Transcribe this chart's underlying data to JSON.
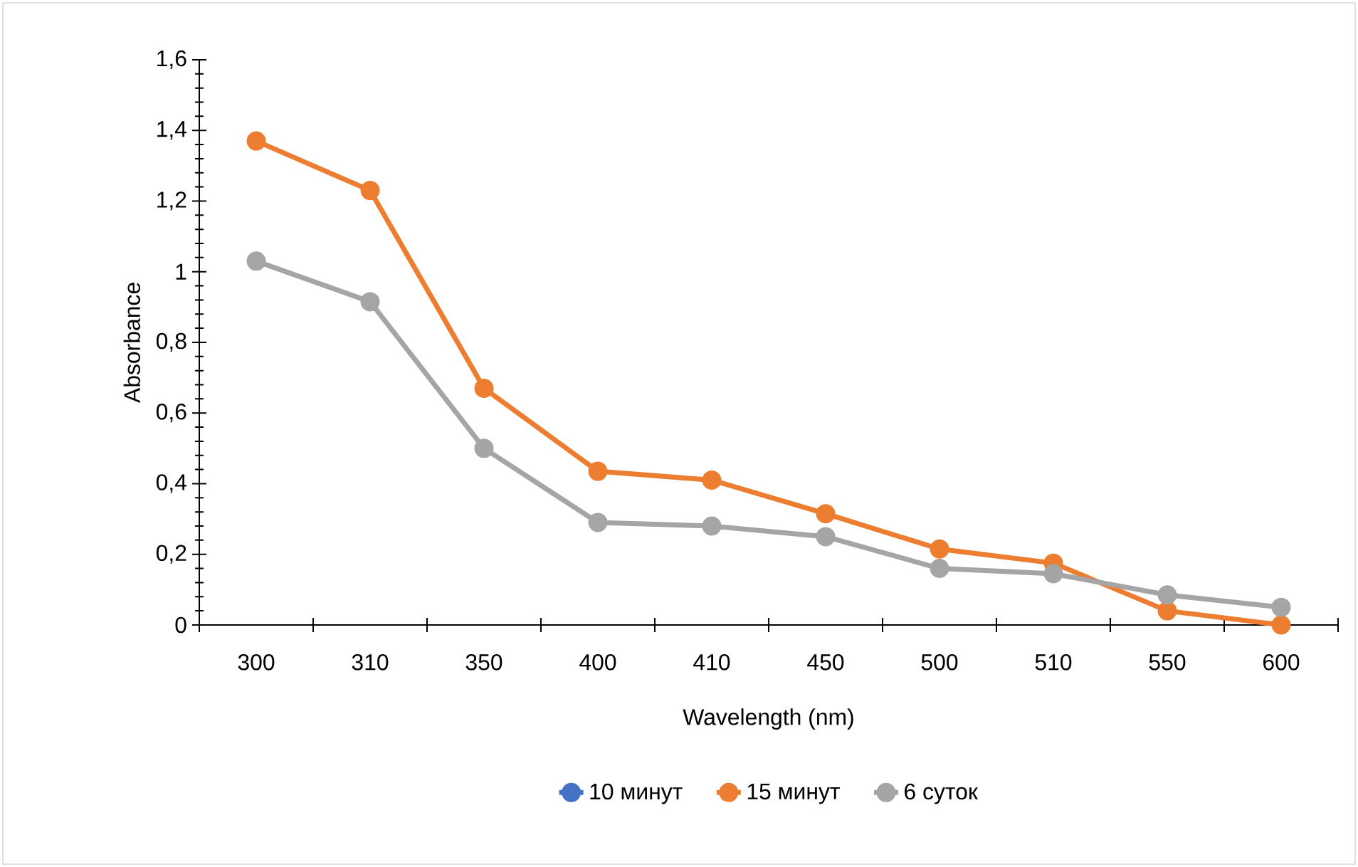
{
  "chart_data": {
    "type": "line",
    "xlabel": "Wavelength (nm)",
    "ylabel": "Absorbance",
    "categories": [
      "300",
      "310",
      "350",
      "400",
      "410",
      "450",
      "500",
      "510",
      "550",
      "600"
    ],
    "series": [
      {
        "name": "10 минут",
        "color": "#4472c4",
        "values": [
          null,
          null,
          null,
          null,
          null,
          null,
          null,
          null,
          null,
          null
        ]
      },
      {
        "name": "15 минут",
        "color": "#ed7d31",
        "values": [
          1.37,
          1.23,
          0.67,
          0.435,
          0.41,
          0.315,
          0.215,
          0.175,
          0.04,
          0
        ]
      },
      {
        "name": "6 суток",
        "color": "#a5a5a5",
        "values": [
          1.03,
          0.915,
          0.5,
          0.29,
          0.28,
          0.25,
          0.16,
          0.145,
          0.085,
          0.05
        ]
      }
    ],
    "ylim": [
      0,
      1.6
    ],
    "yticks": [
      {
        "value": 0,
        "label": "0"
      },
      {
        "value": 0.2,
        "label": "0,2"
      },
      {
        "value": 0.4,
        "label": "0,4"
      },
      {
        "value": 0.6,
        "label": "0,6"
      },
      {
        "value": 0.8,
        "label": "0,8"
      },
      {
        "value": 1,
        "label": "1"
      },
      {
        "value": 1.2,
        "label": "1,2"
      },
      {
        "value": 1.4,
        "label": "1,4"
      },
      {
        "value": 1.6,
        "label": "1,6"
      }
    ],
    "grid": false,
    "legend": "bottom",
    "marker": "circle",
    "line_style": "solid"
  }
}
